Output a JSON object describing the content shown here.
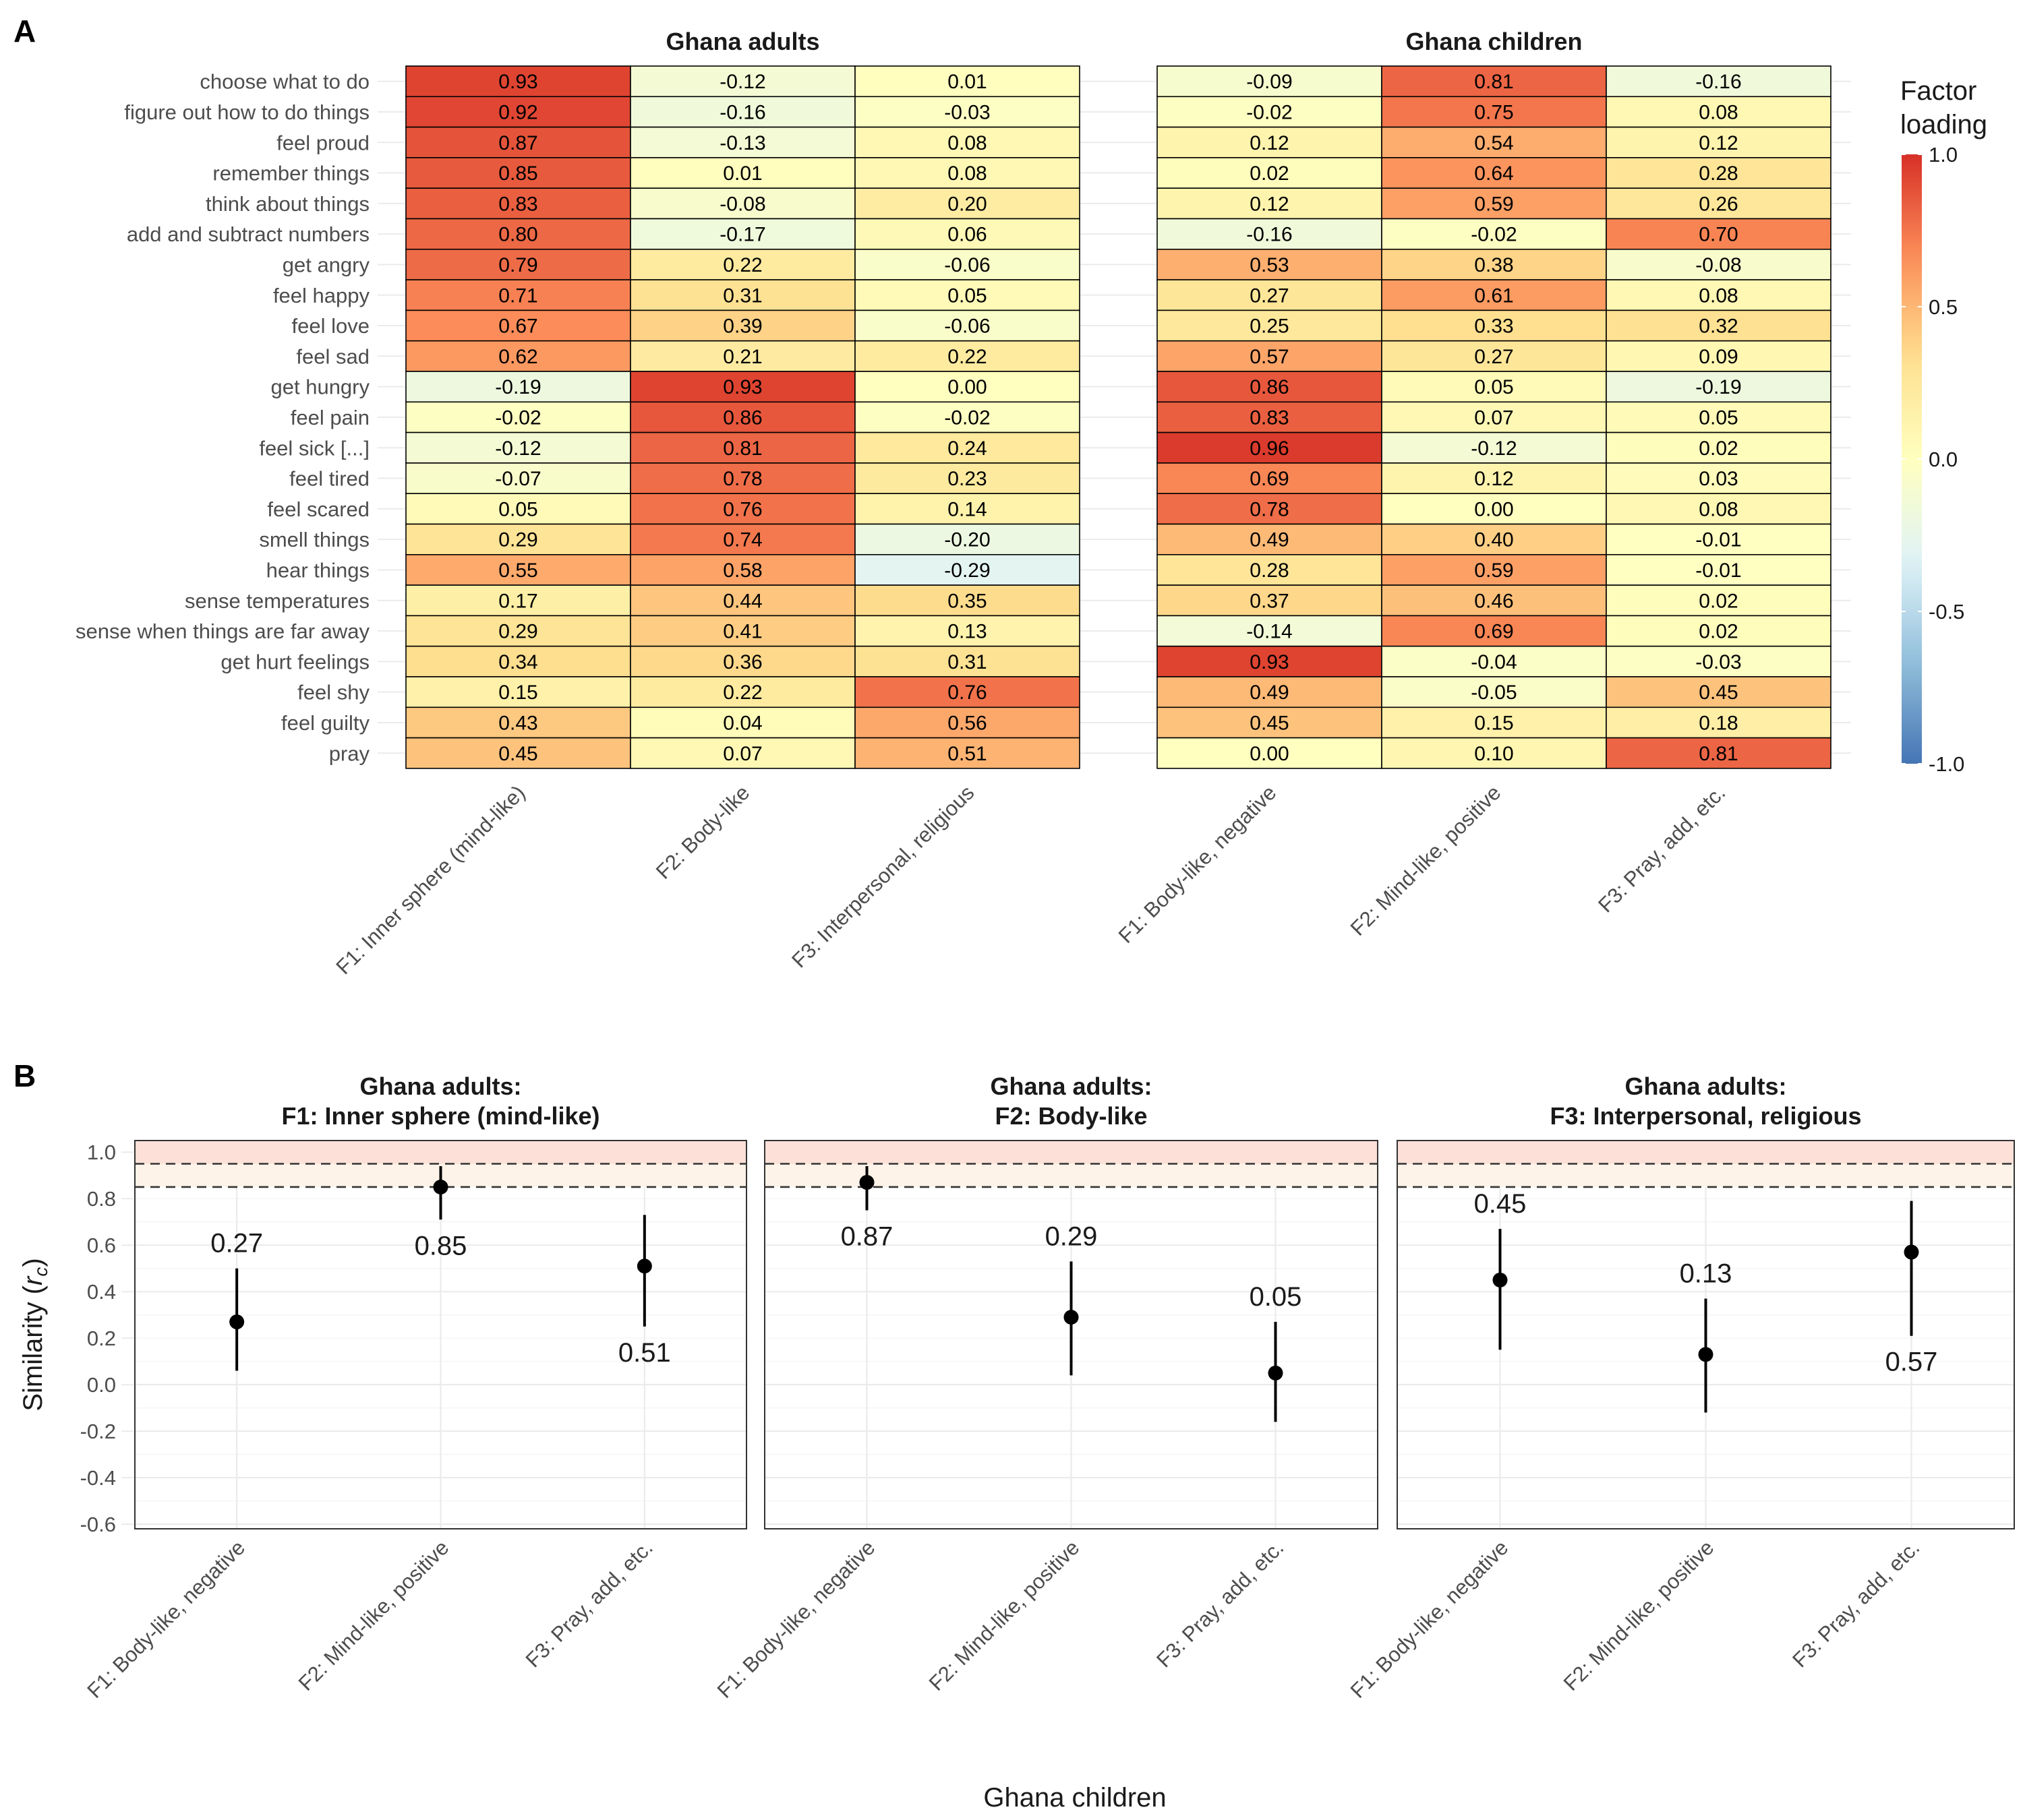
{
  "panel_a_letter": "A",
  "panel_b_letter": "B",
  "chart_data": [
    {
      "type": "heatmap",
      "panel": "A",
      "rows": [
        "choose what to do",
        "figure out how to do things",
        "feel proud",
        "remember things",
        "think about things",
        "add and subtract numbers",
        "get angry",
        "feel happy",
        "feel love",
        "feel sad",
        "get hungry",
        "feel pain",
        "feel sick [...]",
        "feel tired",
        "feel scared",
        "smell things",
        "hear things",
        "sense temperatures",
        "sense when things are far away",
        "get hurt feelings",
        "feel shy",
        "feel guilty",
        "pray"
      ],
      "facets": [
        {
          "title": "Ghana adults",
          "columns": [
            "F1: Inner sphere (mind-like)",
            "F2: Body-like",
            "F3: Interpersonal, religious"
          ],
          "labels": [
            [
              "0.93",
              "-0.12",
              "0.01"
            ],
            [
              "0.92",
              "-0.16",
              "-0.03"
            ],
            [
              "0.87",
              "-0.13",
              "0.08"
            ],
            [
              "0.85",
              "0.01",
              "0.08"
            ],
            [
              "0.83",
              "-0.08",
              "0.20"
            ],
            [
              "0.80",
              "-0.17",
              "0.06"
            ],
            [
              "0.79",
              "0.22",
              "-0.06"
            ],
            [
              "0.71",
              "0.31",
              "0.05"
            ],
            [
              "0.67",
              "0.39",
              "-0.06"
            ],
            [
              "0.62",
              "0.21",
              "0.22"
            ],
            [
              "-0.19",
              "0.93",
              "0.00"
            ],
            [
              "-0.02",
              "0.86",
              "-0.02"
            ],
            [
              "-0.12",
              "0.81",
              "0.24"
            ],
            [
              "-0.07",
              "0.78",
              "0.23"
            ],
            [
              "0.05",
              "0.76",
              "0.14"
            ],
            [
              "0.29",
              "0.74",
              "-0.20"
            ],
            [
              "0.55",
              "0.58",
              "-0.29"
            ],
            [
              "0.17",
              "0.44",
              "0.35"
            ],
            [
              "0.29",
              "0.41",
              "0.13"
            ],
            [
              "0.34",
              "0.36",
              "0.31"
            ],
            [
              "0.15",
              "0.22",
              "0.76"
            ],
            [
              "0.43",
              "0.04",
              "0.56"
            ],
            [
              "0.45",
              "0.07",
              "0.51"
            ]
          ]
        },
        {
          "title": "Ghana children",
          "columns": [
            "F1: Body-like, negative",
            "F2: Mind-like, positive",
            "F3: Pray, add, etc."
          ],
          "labels": [
            [
              "-0.09",
              "0.81",
              "-0.16"
            ],
            [
              "-0.02",
              "0.75",
              "0.08"
            ],
            [
              "0.12",
              "0.54",
              "0.12"
            ],
            [
              "0.02",
              "0.64",
              "0.28"
            ],
            [
              "0.12",
              "0.59",
              "0.26"
            ],
            [
              "-0.16",
              "-0.02",
              "0.70"
            ],
            [
              "0.53",
              "0.38",
              "-0.08"
            ],
            [
              "0.27",
              "0.61",
              "0.08"
            ],
            [
              "0.25",
              "0.33",
              "0.32"
            ],
            [
              "0.57",
              "0.27",
              "0.09"
            ],
            [
              "0.86",
              "0.05",
              "-0.19"
            ],
            [
              "0.83",
              "0.07",
              "0.05"
            ],
            [
              "0.96",
              "-0.12",
              "0.02"
            ],
            [
              "0.69",
              "0.12",
              "0.03"
            ],
            [
              "0.78",
              "0.00",
              "0.08"
            ],
            [
              "0.49",
              "0.40",
              "-0.01"
            ],
            [
              "0.28",
              "0.59",
              "-0.01"
            ],
            [
              "0.37",
              "0.46",
              "0.02"
            ],
            [
              "-0.14",
              "0.69",
              "0.02"
            ],
            [
              "0.93",
              "-0.04",
              "-0.03"
            ],
            [
              "0.49",
              "-0.05",
              "0.45"
            ],
            [
              "0.45",
              "0.15",
              "0.18"
            ],
            [
              "0.00",
              "0.10",
              "0.81"
            ]
          ]
        }
      ],
      "legend": {
        "title": [
          "Factor",
          "loading"
        ],
        "ticks": [
          "1.0",
          "0.5",
          "0.0",
          "-0.5",
          "-1.0"
        ],
        "range": [
          -1,
          1
        ],
        "colors": [
          "#4575b4",
          "#91bfdb",
          "#e0f3f8",
          "#ffffbf",
          "#fee090",
          "#fc8d59",
          "#d73027"
        ]
      }
    },
    {
      "type": "scatter",
      "panel": "B",
      "ylabel_main": "Similarity (",
      "ylabel_sym": "r",
      "ylabel_sub": "c",
      "ylabel_close": ")",
      "xlabel": "Ghana children",
      "ylim": [
        -0.62,
        1.05
      ],
      "yticks": [
        "1.0",
        "0.8",
        "0.6",
        "0.4",
        "0.2",
        "0.0",
        "-0.2",
        "-0.4",
        "-0.6"
      ],
      "reference_lines": [
        0.85,
        0.95
      ],
      "categories": [
        "F1: Body-like, negative",
        "F2: Mind-like, positive",
        "F3: Pray, add, etc."
      ],
      "facets": [
        {
          "title_line1": "Ghana adults:",
          "title_line2": "F1: Inner sphere (mind-like)",
          "points": [
            {
              "value": 0.27,
              "lower": 0.06,
              "upper": 0.5,
              "label": "0.27",
              "label_pos": "above"
            },
            {
              "value": 0.85,
              "lower": 0.71,
              "upper": 0.94,
              "label": "0.85",
              "label_pos": "below"
            },
            {
              "value": 0.51,
              "lower": 0.25,
              "upper": 0.73,
              "label": "0.51",
              "label_pos": "below"
            }
          ]
        },
        {
          "title_line1": "Ghana adults:",
          "title_line2": "F2: Body-like",
          "points": [
            {
              "value": 0.87,
              "lower": 0.75,
              "upper": 0.94,
              "label": "0.87",
              "label_pos": "below"
            },
            {
              "value": 0.29,
              "lower": 0.04,
              "upper": 0.53,
              "label": "0.29",
              "label_pos": "above"
            },
            {
              "value": 0.05,
              "lower": -0.16,
              "upper": 0.27,
              "label": "0.05",
              "label_pos": "above"
            }
          ]
        },
        {
          "title_line1": "Ghana adults:",
          "title_line2": "F3: Interpersonal, religious",
          "points": [
            {
              "value": 0.45,
              "lower": 0.15,
              "upper": 0.67,
              "label": "0.45",
              "label_pos": "above"
            },
            {
              "value": 0.13,
              "lower": -0.12,
              "upper": 0.37,
              "label": "0.13",
              "label_pos": "above"
            },
            {
              "value": 0.57,
              "lower": 0.21,
              "upper": 0.79,
              "label": "0.57",
              "label_pos": "below"
            }
          ]
        }
      ]
    }
  ]
}
